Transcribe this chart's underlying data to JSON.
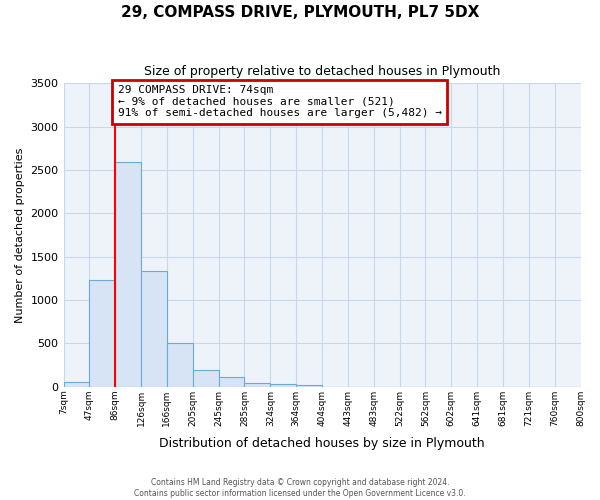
{
  "title": "29, COMPASS DRIVE, PLYMOUTH, PL7 5DX",
  "subtitle": "Size of property relative to detached houses in Plymouth",
  "xlabel": "Distribution of detached houses by size in Plymouth",
  "ylabel": "Number of detached properties",
  "bin_labels": [
    "7sqm",
    "47sqm",
    "86sqm",
    "126sqm",
    "166sqm",
    "205sqm",
    "245sqm",
    "285sqm",
    "324sqm",
    "364sqm",
    "404sqm",
    "443sqm",
    "483sqm",
    "522sqm",
    "562sqm",
    "602sqm",
    "641sqm",
    "681sqm",
    "721sqm",
    "760sqm",
    "800sqm"
  ],
  "bar_values": [
    50,
    1230,
    2590,
    1340,
    500,
    195,
    110,
    45,
    30,
    20,
    0,
    0,
    0,
    0,
    0,
    0,
    0,
    0,
    0,
    0
  ],
  "bar_color": "#d6e4f5",
  "bar_edge_color": "#6aaad4",
  "vline_x_bin": 1,
  "vline_color": "red",
  "annotation_title": "29 COMPASS DRIVE: 74sqm",
  "annotation_line1": "← 9% of detached houses are smaller (521)",
  "annotation_line2": "91% of semi-detached houses are larger (5,482) →",
  "annotation_box_color": "white",
  "annotation_box_edge": "#cc0000",
  "plot_bg_color": "#eef3fa",
  "ylim": [
    0,
    3500
  ],
  "yticks": [
    0,
    500,
    1000,
    1500,
    2000,
    2500,
    3000,
    3500
  ],
  "grid_color": "#c8d8e8",
  "footer_line1": "Contains HM Land Registry data © Crown copyright and database right 2024.",
  "footer_line2": "Contains public sector information licensed under the Open Government Licence v3.0."
}
